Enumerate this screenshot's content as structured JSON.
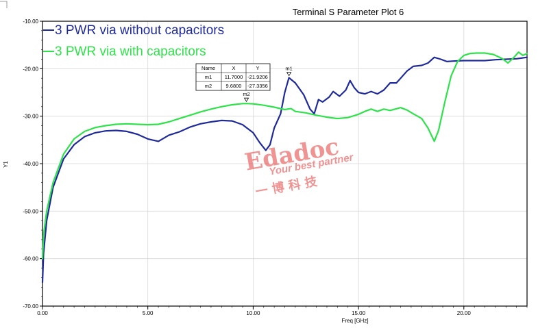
{
  "chart_data": {
    "type": "line",
    "title": "Terminal S Parameter Plot 6",
    "xlabel": "Freq [GHz]",
    "ylabel": "Y1",
    "xlim": [
      0,
      23
    ],
    "ylim": [
      -70,
      -10
    ],
    "x_ticks": [
      "0.00",
      "5.00",
      "10.00",
      "15.00",
      "20.00"
    ],
    "y_ticks": [
      "-10.00",
      "-20.00",
      "-30.00",
      "-40.00",
      "-50.00",
      "-60.00",
      "-70.00"
    ],
    "x_tick_values": [
      0,
      5,
      10,
      15,
      20
    ],
    "y_tick_values": [
      -10,
      -20,
      -30,
      -40,
      -50,
      -60,
      -70
    ],
    "grid": true,
    "legend_position": "top-left",
    "series": [
      {
        "name": "3 PWR via without capacitors",
        "color": "#1f2a9a",
        "points": [
          [
            0,
            -65
          ],
          [
            0.05,
            -59
          ],
          [
            0.2,
            -52
          ],
          [
            0.5,
            -45
          ],
          [
            1,
            -39
          ],
          [
            1.5,
            -36
          ],
          [
            2,
            -34.3
          ],
          [
            2.5,
            -33.5
          ],
          [
            3,
            -33.1
          ],
          [
            3.5,
            -33
          ],
          [
            4,
            -33.2
          ],
          [
            4.5,
            -33.8
          ],
          [
            5,
            -34.8
          ],
          [
            5.5,
            -35.3
          ],
          [
            6,
            -34
          ],
          [
            6.5,
            -33.3
          ],
          [
            7,
            -32.3
          ],
          [
            7.5,
            -31.6
          ],
          [
            8,
            -31.2
          ],
          [
            8.5,
            -30.9
          ],
          [
            9,
            -31
          ],
          [
            9.5,
            -31.8
          ],
          [
            10,
            -33.5
          ],
          [
            10.3,
            -35.5
          ],
          [
            10.6,
            -37.2
          ],
          [
            10.8,
            -36
          ],
          [
            11,
            -32.5
          ],
          [
            11.3,
            -29.5
          ],
          [
            11.5,
            -25
          ],
          [
            11.7,
            -21.9
          ],
          [
            12,
            -23
          ],
          [
            12.4,
            -25.5
          ],
          [
            12.7,
            -28.5
          ],
          [
            12.9,
            -29.5
          ],
          [
            13.1,
            -26.5
          ],
          [
            13.3,
            -27
          ],
          [
            13.6,
            -26
          ],
          [
            13.8,
            -24.8
          ],
          [
            14.1,
            -25.8
          ],
          [
            14.4,
            -24.5
          ],
          [
            14.6,
            -22.5
          ],
          [
            14.8,
            -24
          ],
          [
            15,
            -25
          ],
          [
            15.3,
            -25.3
          ],
          [
            15.6,
            -24.8
          ],
          [
            15.9,
            -25.3
          ],
          [
            16.2,
            -24.5
          ],
          [
            16.5,
            -23
          ],
          [
            16.8,
            -23
          ],
          [
            17,
            -22
          ],
          [
            17.3,
            -20.5
          ],
          [
            17.6,
            -19.5
          ],
          [
            18,
            -19.3
          ],
          [
            18.3,
            -18.8
          ],
          [
            18.6,
            -17.6
          ],
          [
            18.9,
            -18
          ],
          [
            19.2,
            -18.5
          ],
          [
            19.5,
            -18.4
          ],
          [
            20,
            -18.3
          ],
          [
            20.5,
            -18.3
          ],
          [
            21,
            -18.3
          ],
          [
            21.5,
            -18.1
          ],
          [
            22,
            -18.0
          ],
          [
            22.5,
            -17.9
          ],
          [
            23,
            -17.6
          ]
        ]
      },
      {
        "name": "3 PWR via with capacitors",
        "color": "#2ee24a",
        "points": [
          [
            0,
            -60
          ],
          [
            0.05,
            -55
          ],
          [
            0.2,
            -50
          ],
          [
            0.5,
            -44
          ],
          [
            1,
            -38
          ],
          [
            1.5,
            -34.8
          ],
          [
            2,
            -33.2
          ],
          [
            2.5,
            -32.4
          ],
          [
            3,
            -32
          ],
          [
            3.5,
            -31.7
          ],
          [
            4,
            -31.6
          ],
          [
            4.5,
            -31.7
          ],
          [
            5,
            -31.8
          ],
          [
            5.5,
            -31.7
          ],
          [
            6,
            -31.2
          ],
          [
            6.5,
            -30.5
          ],
          [
            7,
            -29.8
          ],
          [
            7.5,
            -29.1
          ],
          [
            8,
            -28.5
          ],
          [
            8.5,
            -28
          ],
          [
            9,
            -27.6
          ],
          [
            9.5,
            -27.35
          ],
          [
            9.68,
            -27.34
          ],
          [
            10,
            -27.4
          ],
          [
            10.5,
            -27.7
          ],
          [
            11,
            -28.1
          ],
          [
            11.5,
            -28.6
          ],
          [
            11.8,
            -28.4
          ],
          [
            12,
            -29
          ],
          [
            12.5,
            -29.3
          ],
          [
            13,
            -29.8
          ],
          [
            13.5,
            -30.2
          ],
          [
            14,
            -30.5
          ],
          [
            14.5,
            -30.3
          ],
          [
            15,
            -29.6
          ],
          [
            15.3,
            -29
          ],
          [
            15.6,
            -28.5
          ],
          [
            15.9,
            -29
          ],
          [
            16.2,
            -28.5
          ],
          [
            16.5,
            -28.8
          ],
          [
            17,
            -28.2
          ],
          [
            17.3,
            -28.7
          ],
          [
            17.6,
            -29.5
          ],
          [
            18,
            -30.5
          ],
          [
            18.3,
            -32.5
          ],
          [
            18.6,
            -35.3
          ],
          [
            18.8,
            -33
          ],
          [
            19.1,
            -27
          ],
          [
            19.4,
            -21.5
          ],
          [
            19.7,
            -18.5
          ],
          [
            20,
            -17.2
          ],
          [
            20.3,
            -16.8
          ],
          [
            20.6,
            -16.7
          ],
          [
            21,
            -16.7
          ],
          [
            21.4,
            -17
          ],
          [
            21.8,
            -17.8
          ],
          [
            22.1,
            -18.8
          ],
          [
            22.4,
            -17.5
          ],
          [
            22.6,
            -16.5
          ],
          [
            22.8,
            -17.2
          ],
          [
            23,
            -16.8
          ]
        ]
      }
    ],
    "markers": {
      "headers": [
        "Name",
        "X",
        "Y"
      ],
      "rows": [
        {
          "name": "m1",
          "x": "11.7000",
          "y": "-21.9206",
          "xv": 11.7,
          "yv": -21.9206
        },
        {
          "name": "m2",
          "x": "9.6800",
          "y": "-27.3356",
          "xv": 9.68,
          "yv": -27.3356
        }
      ]
    }
  },
  "watermark": {
    "brand": "Edadoc",
    "tagline": "Your best partner",
    "chinese": "一  博  科  技"
  }
}
